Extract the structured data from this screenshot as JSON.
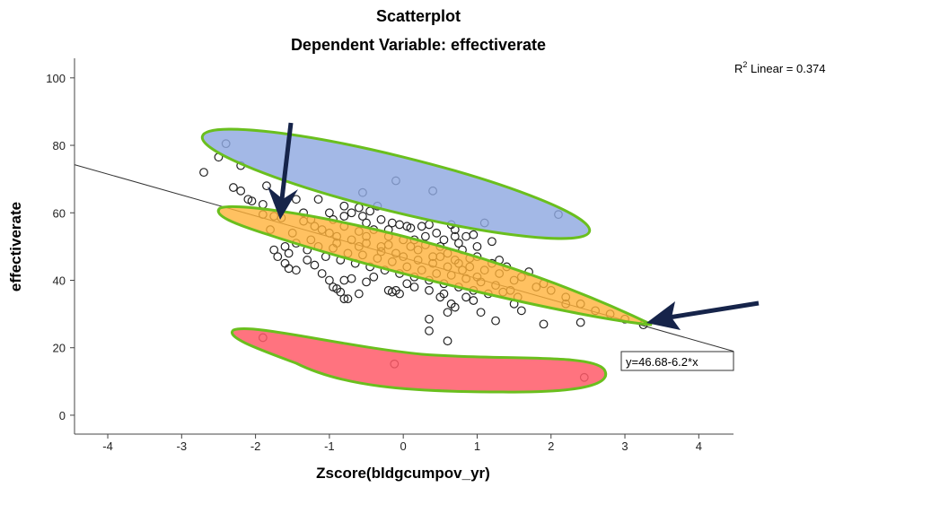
{
  "chart_data": {
    "type": "scatter",
    "title": "Scatterplot",
    "subtitle": "Dependent Variable: effectiverate",
    "xlabel": "Zscore(bldgcumpov_yr)",
    "ylabel": "effectiverate",
    "xlim": [
      -4.45,
      4.47
    ],
    "ylim": [
      -5.6,
      105.8
    ],
    "xticks": [
      -4,
      -3,
      -2,
      -1,
      0,
      1,
      2,
      3,
      4
    ],
    "yticks": [
      0,
      20,
      40,
      60,
      80,
      100
    ],
    "grid": false,
    "r2_label": "R",
    "r2_sup": "2",
    "r2_text": " Linear = 0.374",
    "fit": {
      "intercept": 46.68,
      "slope": -6.2,
      "label": "y=46.68-6.2*x"
    },
    "highlight_colors": {
      "blue": "#8fa8e0",
      "orange": "#ffb13a",
      "red": "#ff5a68",
      "outline": "#6abf1e",
      "arrow": "#16244a"
    },
    "points": [
      [
        -2.4,
        80.5
      ],
      [
        -2.5,
        76.5
      ],
      [
        -2.2,
        74
      ],
      [
        -2.7,
        72
      ],
      [
        -0.55,
        66
      ],
      [
        -0.1,
        69.5
      ],
      [
        0.4,
        66.5
      ],
      [
        2.1,
        59.5
      ],
      [
        -1.9,
        23
      ],
      [
        -0.12,
        15.2
      ],
      [
        2.45,
        11.2
      ],
      [
        3.25,
        26.8
      ],
      [
        -2.3,
        67.5
      ],
      [
        -2.2,
        66.5
      ],
      [
        -2.1,
        64
      ],
      [
        -2.05,
        63.5
      ],
      [
        -1.85,
        68
      ],
      [
        -1.7,
        63.5
      ],
      [
        -1.45,
        64
      ],
      [
        -1.15,
        64
      ],
      [
        -1.9,
        62.5
      ],
      [
        -1.0,
        60
      ],
      [
        -0.95,
        58
      ],
      [
        -0.8,
        59
      ],
      [
        -0.7,
        60
      ],
      [
        -0.6,
        61.5
      ],
      [
        -0.55,
        59
      ],
      [
        -0.45,
        60.5
      ],
      [
        -0.3,
        58
      ],
      [
        -0.15,
        57
      ],
      [
        -0.05,
        56.5
      ],
      [
        0.1,
        55.5
      ],
      [
        0.25,
        56
      ],
      [
        0.35,
        56.5
      ],
      [
        0.45,
        54
      ],
      [
        0.65,
        56.5
      ],
      [
        0.7,
        53
      ],
      [
        0.85,
        53
      ],
      [
        1.1,
        57
      ],
      [
        1.2,
        51.5
      ],
      [
        -1.9,
        59.5
      ],
      [
        -1.75,
        59
      ],
      [
        -1.65,
        58.5
      ],
      [
        -1.8,
        55
      ],
      [
        -1.5,
        54
      ],
      [
        -1.35,
        57.5
      ],
      [
        -1.2,
        56
      ],
      [
        -1.1,
        55
      ],
      [
        -1.0,
        54
      ],
      [
        -0.9,
        53
      ],
      [
        -0.8,
        56
      ],
      [
        -0.7,
        52
      ],
      [
        -0.6,
        54.5
      ],
      [
        -0.5,
        51
      ],
      [
        -0.4,
        55
      ],
      [
        -0.3,
        50
      ],
      [
        -0.2,
        53
      ],
      [
        -0.1,
        48
      ],
      [
        0.0,
        52
      ],
      [
        0.1,
        50
      ],
      [
        0.2,
        49
      ],
      [
        0.3,
        53
      ],
      [
        0.4,
        47
      ],
      [
        0.5,
        50
      ],
      [
        0.6,
        48
      ],
      [
        0.7,
        46
      ],
      [
        0.8,
        49
      ],
      [
        0.9,
        44
      ],
      [
        1.0,
        47
      ],
      [
        1.1,
        43
      ],
      [
        1.2,
        45
      ],
      [
        1.3,
        42
      ],
      [
        1.4,
        44
      ],
      [
        1.5,
        40
      ],
      [
        1.6,
        41
      ],
      [
        1.7,
        42.5
      ],
      [
        1.8,
        38
      ],
      [
        1.9,
        39
      ],
      [
        2.0,
        37
      ],
      [
        2.2,
        35
      ],
      [
        2.4,
        33
      ],
      [
        2.6,
        31
      ],
      [
        2.8,
        30
      ],
      [
        3.0,
        28.5
      ],
      [
        -1.6,
        50
      ],
      [
        -1.55,
        48
      ],
      [
        -1.45,
        51
      ],
      [
        -1.3,
        49
      ],
      [
        -1.25,
        52
      ],
      [
        -1.15,
        50
      ],
      [
        -1.05,
        47
      ],
      [
        -0.95,
        49.5
      ],
      [
        -0.85,
        46
      ],
      [
        -0.75,
        48
      ],
      [
        -0.65,
        45
      ],
      [
        -0.55,
        47.5
      ],
      [
        -0.45,
        44
      ],
      [
        -0.35,
        46.5
      ],
      [
        -0.25,
        43
      ],
      [
        -0.15,
        45.5
      ],
      [
        -0.05,
        42
      ],
      [
        0.05,
        44
      ],
      [
        0.15,
        41
      ],
      [
        0.25,
        43
      ],
      [
        0.35,
        40
      ],
      [
        0.45,
        42
      ],
      [
        0.55,
        39
      ],
      [
        0.65,
        41.5
      ],
      [
        0.75,
        38
      ],
      [
        0.85,
        40.5
      ],
      [
        0.95,
        37
      ],
      [
        1.05,
        39.5
      ],
      [
        1.15,
        36
      ],
      [
        1.25,
        38.5
      ],
      [
        1.35,
        36.5
      ],
      [
        1.45,
        37
      ],
      [
        1.55,
        35
      ],
      [
        -0.9,
        51
      ],
      [
        -0.6,
        50
      ],
      [
        -0.3,
        48.5
      ],
      [
        0.0,
        47
      ],
      [
        0.2,
        46
      ],
      [
        0.4,
        45
      ],
      [
        0.6,
        44
      ],
      [
        0.8,
        43
      ],
      [
        1.0,
        41
      ],
      [
        0.15,
        52
      ],
      [
        0.5,
        47
      ],
      [
        0.75,
        45
      ],
      [
        -0.2,
        50.5
      ],
      [
        -0.5,
        53
      ],
      [
        0.3,
        50.5
      ],
      [
        0.9,
        46.5
      ],
      [
        1.3,
        46
      ],
      [
        -1.75,
        49
      ],
      [
        -1.7,
        47
      ],
      [
        -1.6,
        45
      ],
      [
        -1.55,
        43.5
      ],
      [
        -1.45,
        43
      ],
      [
        -1.3,
        46
      ],
      [
        -1.2,
        44.5
      ],
      [
        -1.1,
        42
      ],
      [
        -1.0,
        40
      ],
      [
        -0.95,
        38
      ],
      [
        -0.9,
        37.5
      ],
      [
        -0.85,
        36.5
      ],
      [
        -0.8,
        40
      ],
      [
        -0.7,
        40.5
      ],
      [
        -0.75,
        34.5
      ],
      [
        -0.8,
        34.5
      ],
      [
        -0.6,
        36
      ],
      [
        -0.5,
        39.5
      ],
      [
        -0.4,
        41
      ],
      [
        -0.2,
        37
      ],
      [
        -0.15,
        36.5
      ],
      [
        -0.1,
        37
      ],
      [
        -0.05,
        36
      ],
      [
        0.05,
        39
      ],
      [
        0.15,
        38
      ],
      [
        0.35,
        37
      ],
      [
        0.5,
        35
      ],
      [
        0.55,
        36
      ],
      [
        0.65,
        33
      ],
      [
        0.7,
        32
      ],
      [
        0.85,
        35
      ],
      [
        0.6,
        30.5
      ],
      [
        0.35,
        28.5
      ],
      [
        0.35,
        25
      ],
      [
        0.6,
        22
      ],
      [
        1.05,
        30.5
      ],
      [
        1.25,
        28
      ],
      [
        1.6,
        31
      ],
      [
        1.9,
        27
      ],
      [
        2.2,
        33
      ],
      [
        2.4,
        27.5
      ],
      [
        1.5,
        33
      ],
      [
        0.95,
        34
      ],
      [
        -1.35,
        60
      ],
      [
        -1.25,
        58
      ],
      [
        -0.5,
        57
      ],
      [
        -0.2,
        55
      ],
      [
        0.05,
        56
      ],
      [
        0.55,
        52
      ],
      [
        0.75,
        51
      ],
      [
        1.0,
        50
      ],
      [
        0.95,
        53.5
      ],
      [
        0.7,
        55
      ],
      [
        -0.8,
        62
      ],
      [
        -0.35,
        62
      ]
    ]
  }
}
